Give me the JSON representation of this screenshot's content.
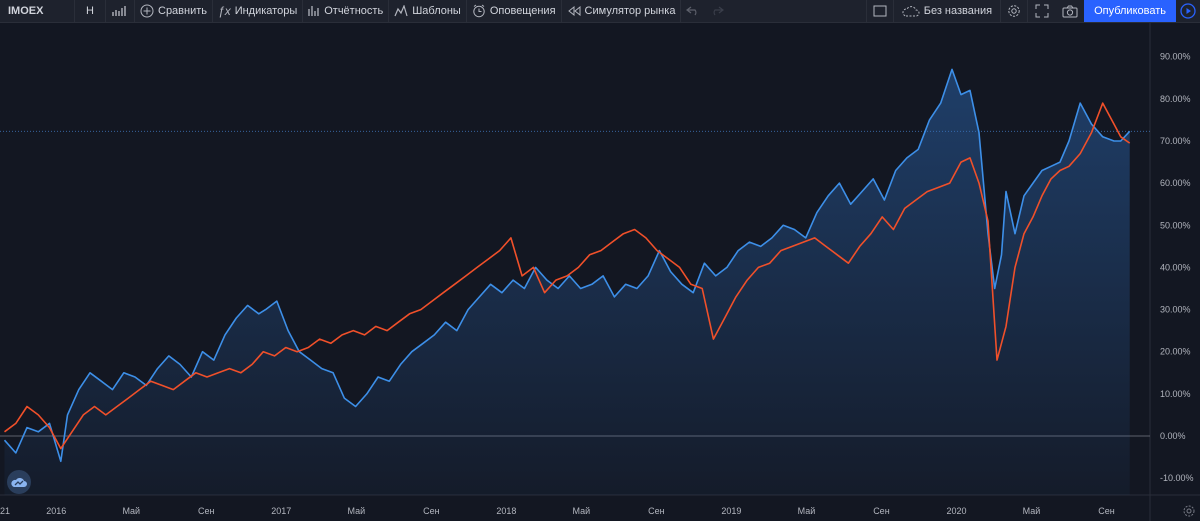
{
  "toolbar": {
    "symbol": "IMOEX",
    "interval": "Н",
    "compare": "Сравнить",
    "indicators": "Индикаторы",
    "financials": "Отчётность",
    "templates": "Шаблоны",
    "alerts": "Оповещения",
    "replay": "Симулятор рынка",
    "layout_name": "Без названия",
    "publish": "Опубликовать"
  },
  "colors": {
    "background": "#131722",
    "toolbar": "#1e222d",
    "blue_series": "#3d8fe8",
    "red_series": "#f0502a",
    "accent": "#2962ff"
  },
  "chart_data": {
    "type": "line",
    "title": "",
    "xlabel": "",
    "ylabel": "",
    "x_tick_labels": [
      "21",
      "2016",
      "Май",
      "Сен",
      "2017",
      "Май",
      "Сен",
      "2018",
      "Май",
      "Сен",
      "2019",
      "Май",
      "Сен",
      "2020",
      "Май",
      "Сен"
    ],
    "y_tick_labels": [
      "90.00%",
      "80.00%",
      "70.00%",
      "60.00%",
      "50.00%",
      "40.00%",
      "30.00%",
      "20.00%",
      "10.00%",
      "0.00%",
      "-10.00%"
    ],
    "ylim": [
      -14,
      98
    ],
    "y_unit": "%",
    "reference_line_value": 72.3,
    "grid": false,
    "series": [
      {
        "color": "#3d8fe8",
        "fill": true,
        "x": [
          2015.77,
          2015.82,
          2015.87,
          2015.92,
          2015.97,
          2016.02,
          2016.05,
          2016.1,
          2016.15,
          2016.2,
          2016.25,
          2016.3,
          2016.35,
          2016.4,
          2016.45,
          2016.5,
          2016.55,
          2016.6,
          2016.65,
          2016.7,
          2016.75,
          2016.8,
          2016.85,
          2016.9,
          2016.93,
          2016.98,
          2017.03,
          2017.08,
          2017.13,
          2017.18,
          2017.23,
          2017.28,
          2017.33,
          2017.38,
          2017.43,
          2017.48,
          2017.53,
          2017.58,
          2017.63,
          2017.68,
          2017.73,
          2017.78,
          2017.83,
          2017.88,
          2017.93,
          2017.98,
          2018.03,
          2018.08,
          2018.13,
          2018.18,
          2018.23,
          2018.28,
          2018.33,
          2018.38,
          2018.43,
          2018.48,
          2018.53,
          2018.58,
          2018.63,
          2018.68,
          2018.73,
          2018.78,
          2018.83,
          2018.88,
          2018.93,
          2018.98,
          2019.03,
          2019.08,
          2019.13,
          2019.18,
          2019.23,
          2019.28,
          2019.33,
          2019.38,
          2019.43,
          2019.48,
          2019.53,
          2019.58,
          2019.63,
          2019.68,
          2019.73,
          2019.78,
          2019.83,
          2019.88,
          2019.93,
          2019.98,
          2020.02,
          2020.06,
          2020.1,
          2020.14,
          2020.17,
          2020.2,
          2020.22,
          2020.26,
          2020.3,
          2020.34,
          2020.38,
          2020.42,
          2020.46,
          2020.5,
          2020.55,
          2020.6,
          2020.65,
          2020.7,
          2020.73,
          2020.77
        ],
        "values": [
          -1,
          -4,
          2,
          1,
          3,
          -6,
          5,
          11,
          15,
          13,
          11,
          15,
          14,
          12,
          16,
          19,
          17,
          14,
          20,
          18,
          24,
          28,
          31,
          29,
          30,
          32,
          25,
          20,
          18,
          16,
          15,
          9,
          7,
          10,
          14,
          13,
          17,
          20,
          22,
          24,
          27,
          25,
          30,
          33,
          36,
          34,
          37,
          35,
          40,
          37,
          35,
          38,
          35,
          36,
          38,
          33,
          36,
          35,
          38,
          44,
          39,
          36,
          34,
          41,
          38,
          40,
          44,
          46,
          45,
          47,
          50,
          49,
          47,
          53,
          57,
          60,
          55,
          58,
          61,
          56,
          63,
          66,
          68,
          75,
          79,
          87,
          81,
          82,
          72,
          48,
          35,
          43,
          58,
          48,
          57,
          60,
          63,
          64,
          65,
          70,
          79,
          74,
          71,
          70,
          70,
          72.3
        ]
      },
      {
        "color": "#f0502a",
        "fill": false,
        "x": [
          2015.77,
          2015.82,
          2015.87,
          2015.92,
          2015.97,
          2016.02,
          2016.07,
          2016.12,
          2016.17,
          2016.22,
          2016.27,
          2016.32,
          2016.37,
          2016.42,
          2016.47,
          2016.52,
          2016.57,
          2016.62,
          2016.67,
          2016.72,
          2016.77,
          2016.82,
          2016.87,
          2016.92,
          2016.97,
          2017.02,
          2017.07,
          2017.12,
          2017.17,
          2017.22,
          2017.27,
          2017.32,
          2017.37,
          2017.42,
          2017.47,
          2017.52,
          2017.57,
          2017.62,
          2017.67,
          2017.72,
          2017.77,
          2017.82,
          2017.87,
          2017.92,
          2017.97,
          2018.02,
          2018.07,
          2018.12,
          2018.17,
          2018.22,
          2018.27,
          2018.32,
          2018.37,
          2018.42,
          2018.47,
          2018.52,
          2018.57,
          2018.62,
          2018.67,
          2018.72,
          2018.77,
          2018.82,
          2018.87,
          2018.92,
          2018.97,
          2019.02,
          2019.07,
          2019.12,
          2019.17,
          2019.22,
          2019.27,
          2019.32,
          2019.37,
          2019.42,
          2019.47,
          2019.52,
          2019.57,
          2019.62,
          2019.67,
          2019.72,
          2019.77,
          2019.82,
          2019.87,
          2019.92,
          2019.97,
          2020.02,
          2020.06,
          2020.1,
          2020.14,
          2020.18,
          2020.22,
          2020.26,
          2020.3,
          2020.34,
          2020.38,
          2020.42,
          2020.46,
          2020.5,
          2020.55,
          2020.6,
          2020.65,
          2020.7,
          2020.73,
          2020.77
        ],
        "values": [
          1,
          3,
          7,
          5,
          2,
          -3,
          1,
          5,
          7,
          5,
          7,
          9,
          11,
          13,
          12,
          11,
          13,
          15,
          14,
          15,
          16,
          15,
          17,
          20,
          19,
          21,
          20,
          21,
          23,
          22,
          24,
          25,
          24,
          26,
          25,
          27,
          29,
          30,
          32,
          34,
          36,
          38,
          40,
          42,
          44,
          47,
          38,
          40,
          34,
          37,
          38,
          40,
          43,
          44,
          46,
          48,
          49,
          47,
          44,
          42,
          40,
          36,
          35,
          23,
          28,
          33,
          37,
          40,
          41,
          44,
          45,
          46,
          47,
          45,
          43,
          41,
          45,
          48,
          52,
          49,
          54,
          56,
          58,
          59,
          60,
          65,
          66,
          60,
          51,
          18,
          26,
          40,
          48,
          52,
          57,
          61,
          63,
          64,
          67,
          72,
          79,
          74,
          71,
          69.5
        ]
      }
    ]
  }
}
